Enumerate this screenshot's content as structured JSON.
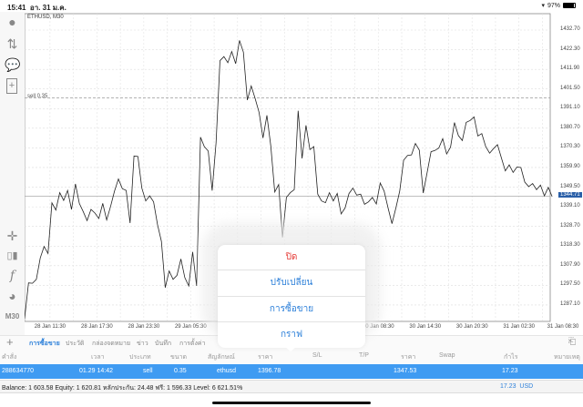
{
  "status_bar": {
    "time": "15:41",
    "date": "อา. 31 ม.ค.",
    "battery": "97%"
  },
  "chart": {
    "title": "ETHUSD, M30",
    "sell_label": "sell 0.35",
    "current_price": "1344.71"
  },
  "left_toolbar": {
    "timeframe": "M30"
  },
  "tabs": [
    {
      "label": "การซื้อขาย",
      "active": true
    },
    {
      "label": "ประวัติ"
    },
    {
      "label": "กล่องจดหมาย"
    },
    {
      "label": "ข่าว"
    },
    {
      "label": "บันทึก"
    },
    {
      "label": "การตั้งค่า"
    }
  ],
  "table": {
    "headers": [
      "คำสั่ง",
      "เวลา",
      "ประเภท",
      "ขนาด",
      "สัญลักษณ์",
      "ราคา",
      "S/L",
      "T/P",
      "ราคา",
      "Swap",
      "กำไร",
      "หมายเหตุ"
    ],
    "rows": [
      {
        "order": "288634770",
        "time": "01.29 14:42",
        "type": "sell",
        "size": "0.35",
        "symbol": "ethusd",
        "open_price": "1396.78",
        "price": "1347.53",
        "profit": "17.23"
      }
    ]
  },
  "balance": {
    "text": "Balance: 1 603.58 Equity: 1 620.81 หลักประกัน: 24.48 ฟรี: 1 596.33 Level: 6 621.51%",
    "total": "17.23  USD"
  },
  "popup": {
    "items": [
      {
        "label": "ปิด",
        "color": "#e53935"
      },
      {
        "label": "ปรับเปลี่ยน"
      },
      {
        "label": "การซื้อขาย"
      },
      {
        "label": "กราฟ"
      }
    ]
  },
  "colors": {
    "accent": "#2b7fd9",
    "selected_row": "#3f9bf2",
    "price_tag": "#2a5fa8"
  },
  "chart_data": {
    "type": "line",
    "symbol": "ETHUSD",
    "timeframe": "M30",
    "y_ticks": [
      "1432.70",
      "1422.30",
      "1411.90",
      "1401.50",
      "1391.10",
      "1380.70",
      "1370.30",
      "1359.90",
      "1349.50",
      "1339.10",
      "1328.70",
      "1318.30",
      "1307.90",
      "1297.50",
      "1287.10"
    ],
    "x_ticks": [
      "28 Jan 11:30",
      "28 Jan 17:30",
      "28 Jan 23:30",
      "29 Jan 05:30",
      "30 Jan 08:30",
      "30 Jan 14:30",
      "30 Jan 20:30",
      "31 Jan 02:30",
      "31 Jan 08:30"
    ],
    "sell_level": 1396.78,
    "current": 1344.71,
    "grid": true,
    "values": [
      1279.9,
      1298.8,
      1298.6,
      1300.7,
      1312.0,
      1318.1,
      1314.4,
      1341.2,
      1337.4,
      1346.6,
      1342.5,
      1347.8,
      1337.7,
      1351.2,
      1340.9,
      1336.6,
      1331.8,
      1337.7,
      1335.8,
      1332.9,
      1340.9,
      1332.1,
      1339.3,
      1347.4,
      1353.8,
      1348.7,
      1347.8,
      1330.5,
      1366.0,
      1365.8,
      1349.0,
      1342.2,
      1344.9,
      1341.7,
      1329.7,
      1320.8,
      1296.3,
      1305.1,
      1300.7,
      1302.8,
      1311.5,
      1301.6,
      1297.2,
      1315.2,
      1297.2,
      1376.0,
      1371.0,
      1368.6,
      1347.7,
      1373.1,
      1416.5,
      1418.6,
      1415.4,
      1421.3,
      1414.9,
      1427.2,
      1421.0,
      1395.6,
      1403.1,
      1396.4,
      1389.1,
      1375.5,
      1387.5,
      1371.2,
      1346.9,
      1350.9,
      1322.9,
      1344.1,
      1346.6,
      1348.2,
      1390.0,
      1364.7,
      1382.2,
      1369.4,
      1371.0,
      1345.8,
      1342.2,
      1341.3,
      1346.6,
      1342.2,
      1346.2,
      1335.3,
      1338.5,
      1346.1,
      1349.0,
      1345.3,
      1345.8,
      1340.4,
      1341.7,
      1344.1,
      1340.6,
      1351.7,
      1347.4,
      1338.5,
      1330.2,
      1338.5,
      1347.4,
      1363.8,
      1366.3,
      1366.6,
      1372.6,
      1369.1,
      1346.4,
      1357.3,
      1368.3,
      1368.9,
      1370.2,
      1375.2,
      1367.1,
      1370.7,
      1383.7,
      1376.8,
      1374.2,
      1383.8,
      1384.8,
      1386.7,
      1376.6,
      1377.9,
      1371.0,
      1367.5,
      1369.9,
      1372.0,
      1365.0,
      1358.1,
      1361.3,
      1357.3,
      1360.2,
      1359.9,
      1352.2,
      1349.8,
      1351.4,
      1348.2,
      1350.6,
      1344.9,
      1349.4,
      1344.5
    ]
  }
}
